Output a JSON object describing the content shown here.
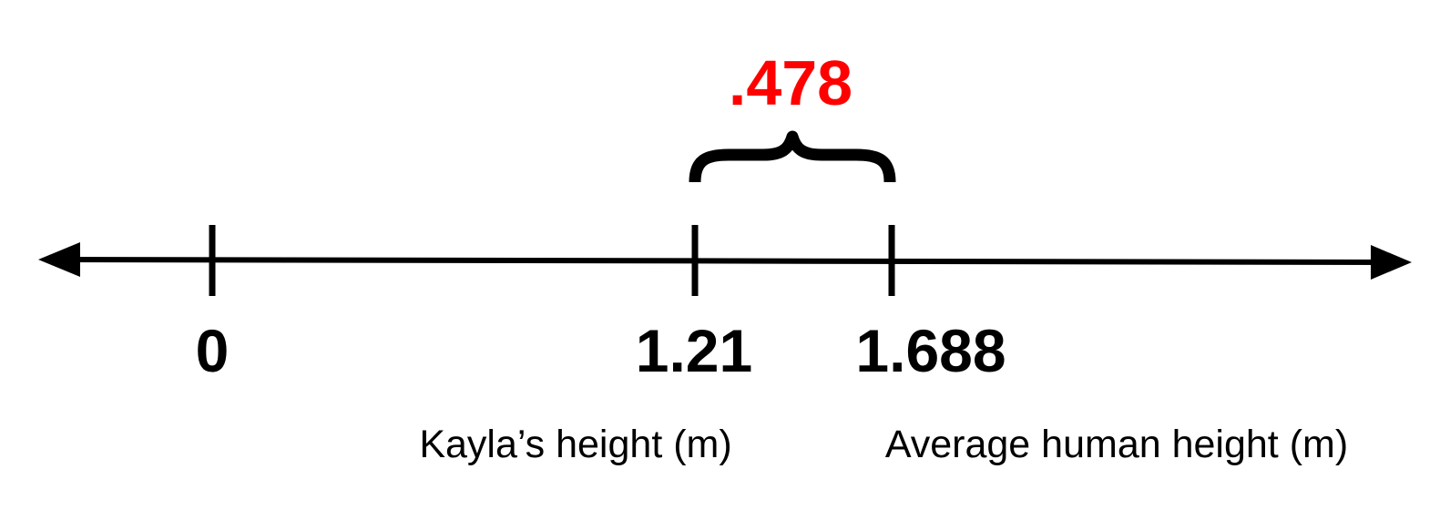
{
  "number_line": {
    "ticks": [
      {
        "value": 0,
        "label": "0"
      },
      {
        "value": 1.21,
        "label": "1.21"
      },
      {
        "value": 1.688,
        "label": "1.688"
      }
    ],
    "arrows": "both-ends"
  },
  "captions": {
    "kayla": "Kayla’s height (m)",
    "average": "Average human height (m)"
  },
  "difference": {
    "label": ".478",
    "color": "#ff0000"
  },
  "colors": {
    "line": "#000000",
    "text": "#000000"
  }
}
